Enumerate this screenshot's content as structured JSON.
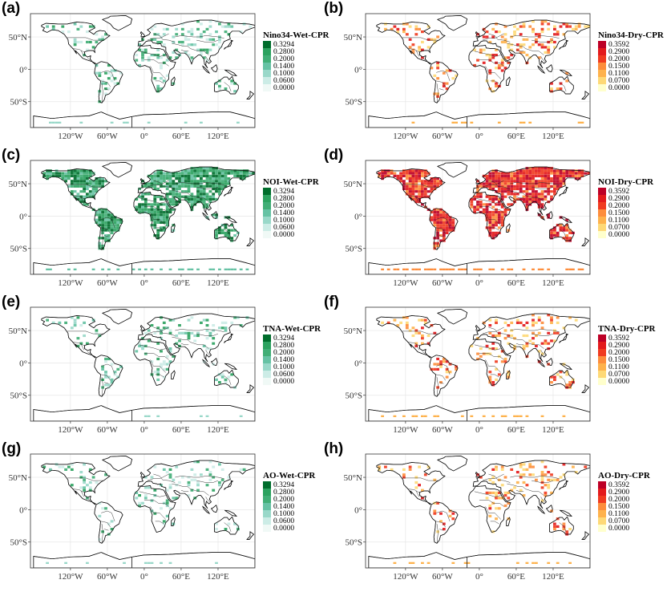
{
  "figure": {
    "x_ticks": [
      "120°W",
      "60°W",
      "0°",
      "60°E",
      "120°E"
    ],
    "y_ticks": [
      "50°N",
      "0°",
      "50°S"
    ],
    "legends": {
      "wet": {
        "values": [
          "0.3294",
          "0.2800",
          "0.2000",
          "0.1400",
          "0.1000",
          "0.0600",
          "0.0000"
        ],
        "colors": [
          "#006d2c",
          "#2ca25f",
          "#41ae76",
          "#66c2a4",
          "#99d8c9",
          "#ccece6",
          "#f0f9f6"
        ]
      },
      "dry": {
        "values": [
          "0.3592",
          "0.2900",
          "0.2000",
          "0.1500",
          "0.1100",
          "0.0700",
          "0.0000"
        ],
        "colors": [
          "#bd0026",
          "#e31a1c",
          "#f03b20",
          "#fd8d3c",
          "#feb24c",
          "#fed976",
          "#ffffcc"
        ]
      }
    },
    "panels": [
      {
        "label": "(a)",
        "title": "Nino34-Wet-CPR",
        "scheme": "wet",
        "intensity": 0.35
      },
      {
        "label": "(b)",
        "title": "Nino34-Dry-CPR",
        "scheme": "dry",
        "intensity": 0.35
      },
      {
        "label": "(c)",
        "title": "NOI-Wet-CPR",
        "scheme": "wet",
        "intensity": 0.95
      },
      {
        "label": "(d)",
        "title": "NOI-Dry-CPR",
        "scheme": "dry",
        "intensity": 0.95
      },
      {
        "label": "(e)",
        "title": "TNA-Wet-CPR",
        "scheme": "wet",
        "intensity": 0.25
      },
      {
        "label": "(f)",
        "title": "TNA-Dry-CPR",
        "scheme": "dry",
        "intensity": 0.35
      },
      {
        "label": "(g)",
        "title": "AO-Wet-CPR",
        "scheme": "wet",
        "intensity": 0.22
      },
      {
        "label": "(h)",
        "title": "AO-Dry-CPR",
        "scheme": "dry",
        "intensity": 0.25
      }
    ]
  }
}
